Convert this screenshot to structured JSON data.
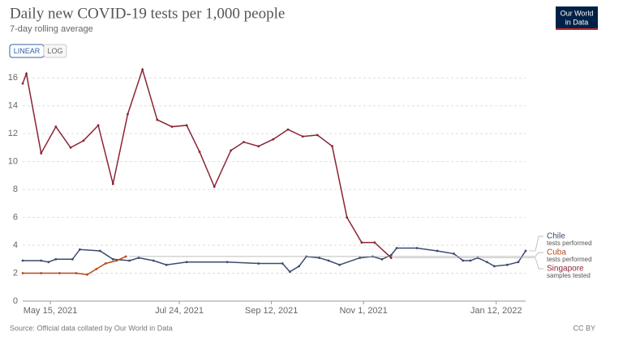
{
  "chart_data": {
    "type": "line",
    "title": "Daily new COVID-19 tests per 1,000 people",
    "subtitle": "7-day rolling average",
    "buttons": [
      "LINEAR",
      "LOG"
    ],
    "logo": [
      "Our World",
      "in Data"
    ],
    "source": "Source: Official data collated by Our World in Data",
    "license": "CC BY",
    "xlim": [
      "2021-04-30",
      "2022-01-28"
    ],
    "xticks": [
      {
        "value": "2021-05-15",
        "label": "May 15, 2021"
      },
      {
        "value": "2021-07-24",
        "label": "Jul 24, 2021"
      },
      {
        "value": "2021-09-12",
        "label": "Sep 12, 2021"
      },
      {
        "value": "2021-11-01",
        "label": "Nov 1, 2021"
      },
      {
        "value": "2022-01-12",
        "label": "Jan 12, 2022"
      }
    ],
    "ylim": [
      0,
      17
    ],
    "yticks": [
      0,
      2,
      4,
      6,
      8,
      10,
      12,
      14,
      16
    ],
    "grid": true,
    "series": [
      {
        "name": "Chile",
        "annotation": "tests performed",
        "color": "#3b4a6e",
        "x": [
          "2021-04-30",
          "2021-05-10",
          "2021-05-14",
          "2021-05-18",
          "2021-05-27",
          "2021-05-31",
          "2021-06-11",
          "2021-06-18",
          "2021-06-27",
          "2021-07-02",
          "2021-07-10",
          "2021-07-17",
          "2021-07-28",
          "2021-08-19",
          "2021-09-05",
          "2021-09-18",
          "2021-09-22",
          "2021-09-27",
          "2021-10-01",
          "2021-10-08",
          "2021-10-13",
          "2021-10-19",
          "2021-10-30",
          "2021-11-06",
          "2021-11-11",
          "2021-11-16",
          "2021-11-19",
          "2021-11-30",
          "2021-12-11",
          "2021-12-20",
          "2021-12-25",
          "2021-12-29",
          "2022-01-02",
          "2022-01-07",
          "2022-01-11",
          "2022-01-18",
          "2022-01-24",
          "2022-01-28"
        ],
        "values": [
          2.9,
          2.9,
          2.8,
          3.0,
          3.0,
          3.7,
          3.6,
          3.0,
          2.9,
          3.1,
          2.9,
          2.6,
          2.8,
          2.8,
          2.7,
          2.7,
          2.1,
          2.5,
          3.2,
          3.1,
          2.9,
          2.6,
          3.1,
          3.2,
          3.0,
          3.3,
          3.8,
          3.8,
          3.6,
          3.4,
          2.9,
          2.9,
          3.1,
          2.8,
          2.5,
          2.6,
          2.8,
          3.6
        ]
      },
      {
        "name": "Cuba",
        "annotation": "tests performed",
        "color": "#b9481a",
        "x": [
          "2021-04-30",
          "2021-05-10",
          "2021-05-20",
          "2021-05-29",
          "2021-06-04",
          "2021-06-09",
          "2021-06-14",
          "2021-06-20",
          "2021-06-25"
        ],
        "values": [
          2.0,
          2.0,
          2.0,
          2.0,
          1.9,
          2.3,
          2.7,
          2.9,
          3.2
        ]
      },
      {
        "name": "Singapore",
        "annotation": "samples tested",
        "color": "#8b2434",
        "x": [
          "2021-04-30",
          "2021-05-02",
          "2021-05-10",
          "2021-05-18",
          "2021-05-26",
          "2021-06-02",
          "2021-06-10",
          "2021-06-18",
          "2021-06-26",
          "2021-07-04",
          "2021-07-12",
          "2021-07-20",
          "2021-07-28",
          "2021-08-04",
          "2021-08-12",
          "2021-08-21",
          "2021-08-28",
          "2021-09-05",
          "2021-09-13",
          "2021-09-21",
          "2021-09-29",
          "2021-10-07",
          "2021-10-15",
          "2021-10-23",
          "2021-10-31",
          "2021-11-07",
          "2021-11-16"
        ],
        "values": [
          15.6,
          16.3,
          10.6,
          12.5,
          11.0,
          11.5,
          12.6,
          8.4,
          13.4,
          16.6,
          13.0,
          12.5,
          12.6,
          10.7,
          8.2,
          10.8,
          11.4,
          11.1,
          11.6,
          12.3,
          11.8,
          11.9,
          11.1,
          6.0,
          4.2,
          4.2,
          3.1
        ]
      }
    ]
  }
}
